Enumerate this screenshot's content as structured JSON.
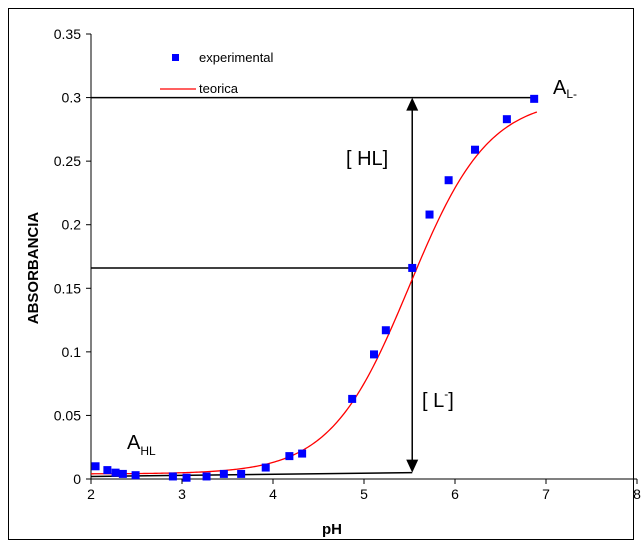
{
  "chart_data": {
    "type": "scatter",
    "xlabel": "pH",
    "ylabel": "ABSORBANCIA",
    "xlim": [
      2,
      8
    ],
    "ylim": [
      0,
      0.35
    ],
    "x_ticks": [
      "2",
      "3",
      "4",
      "5",
      "6",
      "7",
      "8"
    ],
    "y_ticks": [
      "0",
      "0.05",
      "0.1",
      "0.15",
      "0.2",
      "0.25",
      "0.3",
      "0.35"
    ],
    "legend_position": "top-left",
    "grid": false,
    "series": [
      {
        "name": "experimental",
        "type": "scatter",
        "color": "#0000ff",
        "marker": "square",
        "points": [
          [
            2.05,
            0.01
          ],
          [
            2.18,
            0.007
          ],
          [
            2.27,
            0.005
          ],
          [
            2.35,
            0.004
          ],
          [
            2.49,
            0.003
          ],
          [
            2.9,
            0.002
          ],
          [
            3.05,
            0.001
          ],
          [
            3.27,
            0.002
          ],
          [
            3.46,
            0.004
          ],
          [
            3.65,
            0.004
          ],
          [
            3.92,
            0.009
          ],
          [
            4.18,
            0.018
          ],
          [
            4.32,
            0.02
          ],
          [
            4.87,
            0.063
          ],
          [
            5.11,
            0.098
          ],
          [
            5.24,
            0.117
          ],
          [
            5.53,
            0.166
          ],
          [
            5.72,
            0.208
          ],
          [
            5.93,
            0.235
          ],
          [
            6.22,
            0.259
          ],
          [
            6.57,
            0.283
          ],
          [
            6.87,
            0.299
          ]
        ]
      },
      {
        "name": "teorica",
        "type": "line",
        "color": "#ff0000",
        "pKa": 5.5,
        "A_HL": 0.004,
        "A_L": 0.3,
        "x_range": [
          2,
          6.9
        ]
      }
    ],
    "annotations": {
      "a_l_main": "A",
      "a_l_sub": "L-",
      "a_hl_main": "A",
      "a_hl_sub": "HL",
      "hl_bracket": "[ HL]",
      "l_main": "[ L",
      "l_sup": "-",
      "l_close": "]"
    },
    "guide_lines": {
      "top_level": 0.3,
      "mid_level": 0.166,
      "baseline_start": [
        2,
        0.002
      ],
      "baseline_end": [
        5.53,
        0.005
      ],
      "vertical_x": 5.53
    }
  }
}
